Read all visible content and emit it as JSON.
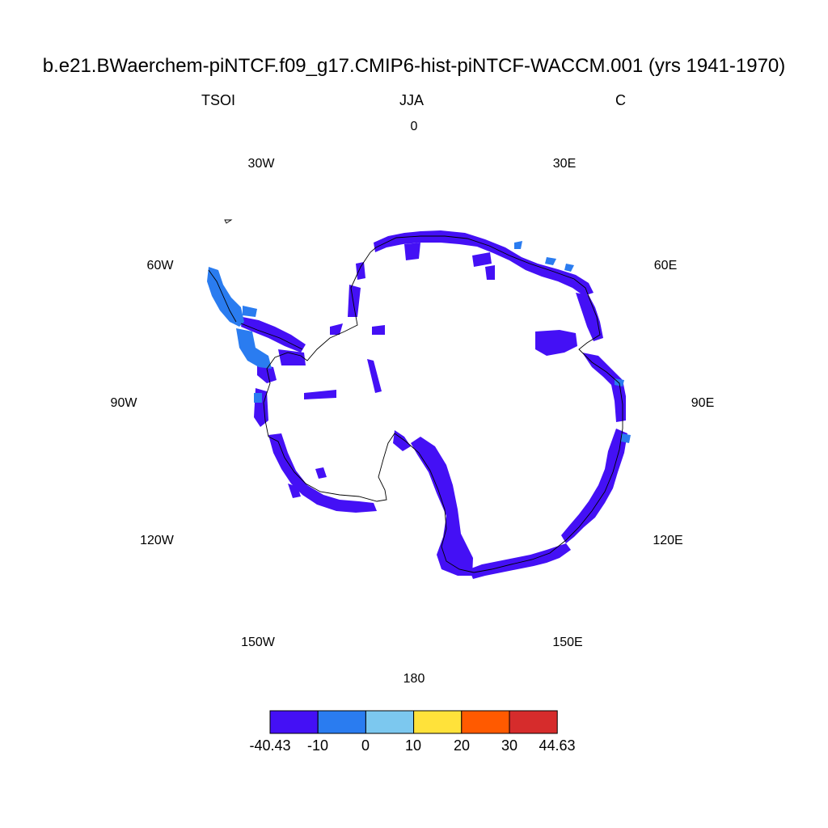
{
  "title": "b.e21.BWaerchem-piNTCF.f09_g17.CMIP6-hist-piNTCF-WACCM.001 (yrs 1941-1970)",
  "left_label": "TSOI",
  "center_label": "JJA",
  "right_label": "C",
  "longitude_labels": [
    "0",
    "30E",
    "60E",
    "90E",
    "120E",
    "150E",
    "180",
    "150W",
    "120W",
    "90W",
    "60W",
    "30W"
  ],
  "colorbar": {
    "labels": [
      "-40.43",
      "-10",
      "0",
      "10",
      "20",
      "30",
      "44.63"
    ],
    "colors": [
      "#4410f5",
      "#2a7cf0",
      "#7cc8ef",
      "#ffe23a",
      "#ff5a00",
      "#d62c2c"
    ]
  },
  "map": {
    "projection": "south-polar-stereographic",
    "region": "Antarctica",
    "dominant_bin": "-40.43 to -10",
    "secondary_bin": "-10 to 0"
  }
}
